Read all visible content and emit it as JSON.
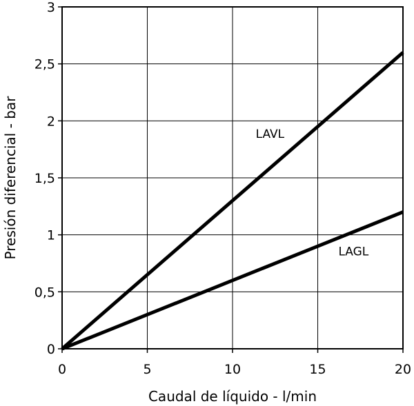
{
  "chart_data": {
    "type": "line",
    "title": "",
    "xlabel": "Caudal de líquido - l/min",
    "ylabel": "Presión diferencial - bar",
    "xlim": [
      0,
      20
    ],
    "ylim": [
      0,
      3
    ],
    "x_ticks": [
      0,
      5,
      10,
      15,
      20
    ],
    "x_tick_labels": [
      "0",
      "5",
      "10",
      "15",
      "20"
    ],
    "y_ticks": [
      0,
      0.5,
      1,
      1.5,
      2,
      2.5,
      3
    ],
    "y_tick_labels": [
      "0",
      "0,5",
      "1",
      "1,5",
      "2",
      "2,5",
      "3"
    ],
    "grid": true,
    "series": [
      {
        "name": "LAVL",
        "x": [
          0,
          20
        ],
        "y": [
          0,
          2.6
        ],
        "label_at": [
          12.2,
          1.85
        ]
      },
      {
        "name": "LAGL",
        "x": [
          0,
          20
        ],
        "y": [
          0,
          1.2
        ],
        "label_at": [
          17.1,
          0.82
        ]
      }
    ],
    "line_color": "#000000"
  }
}
